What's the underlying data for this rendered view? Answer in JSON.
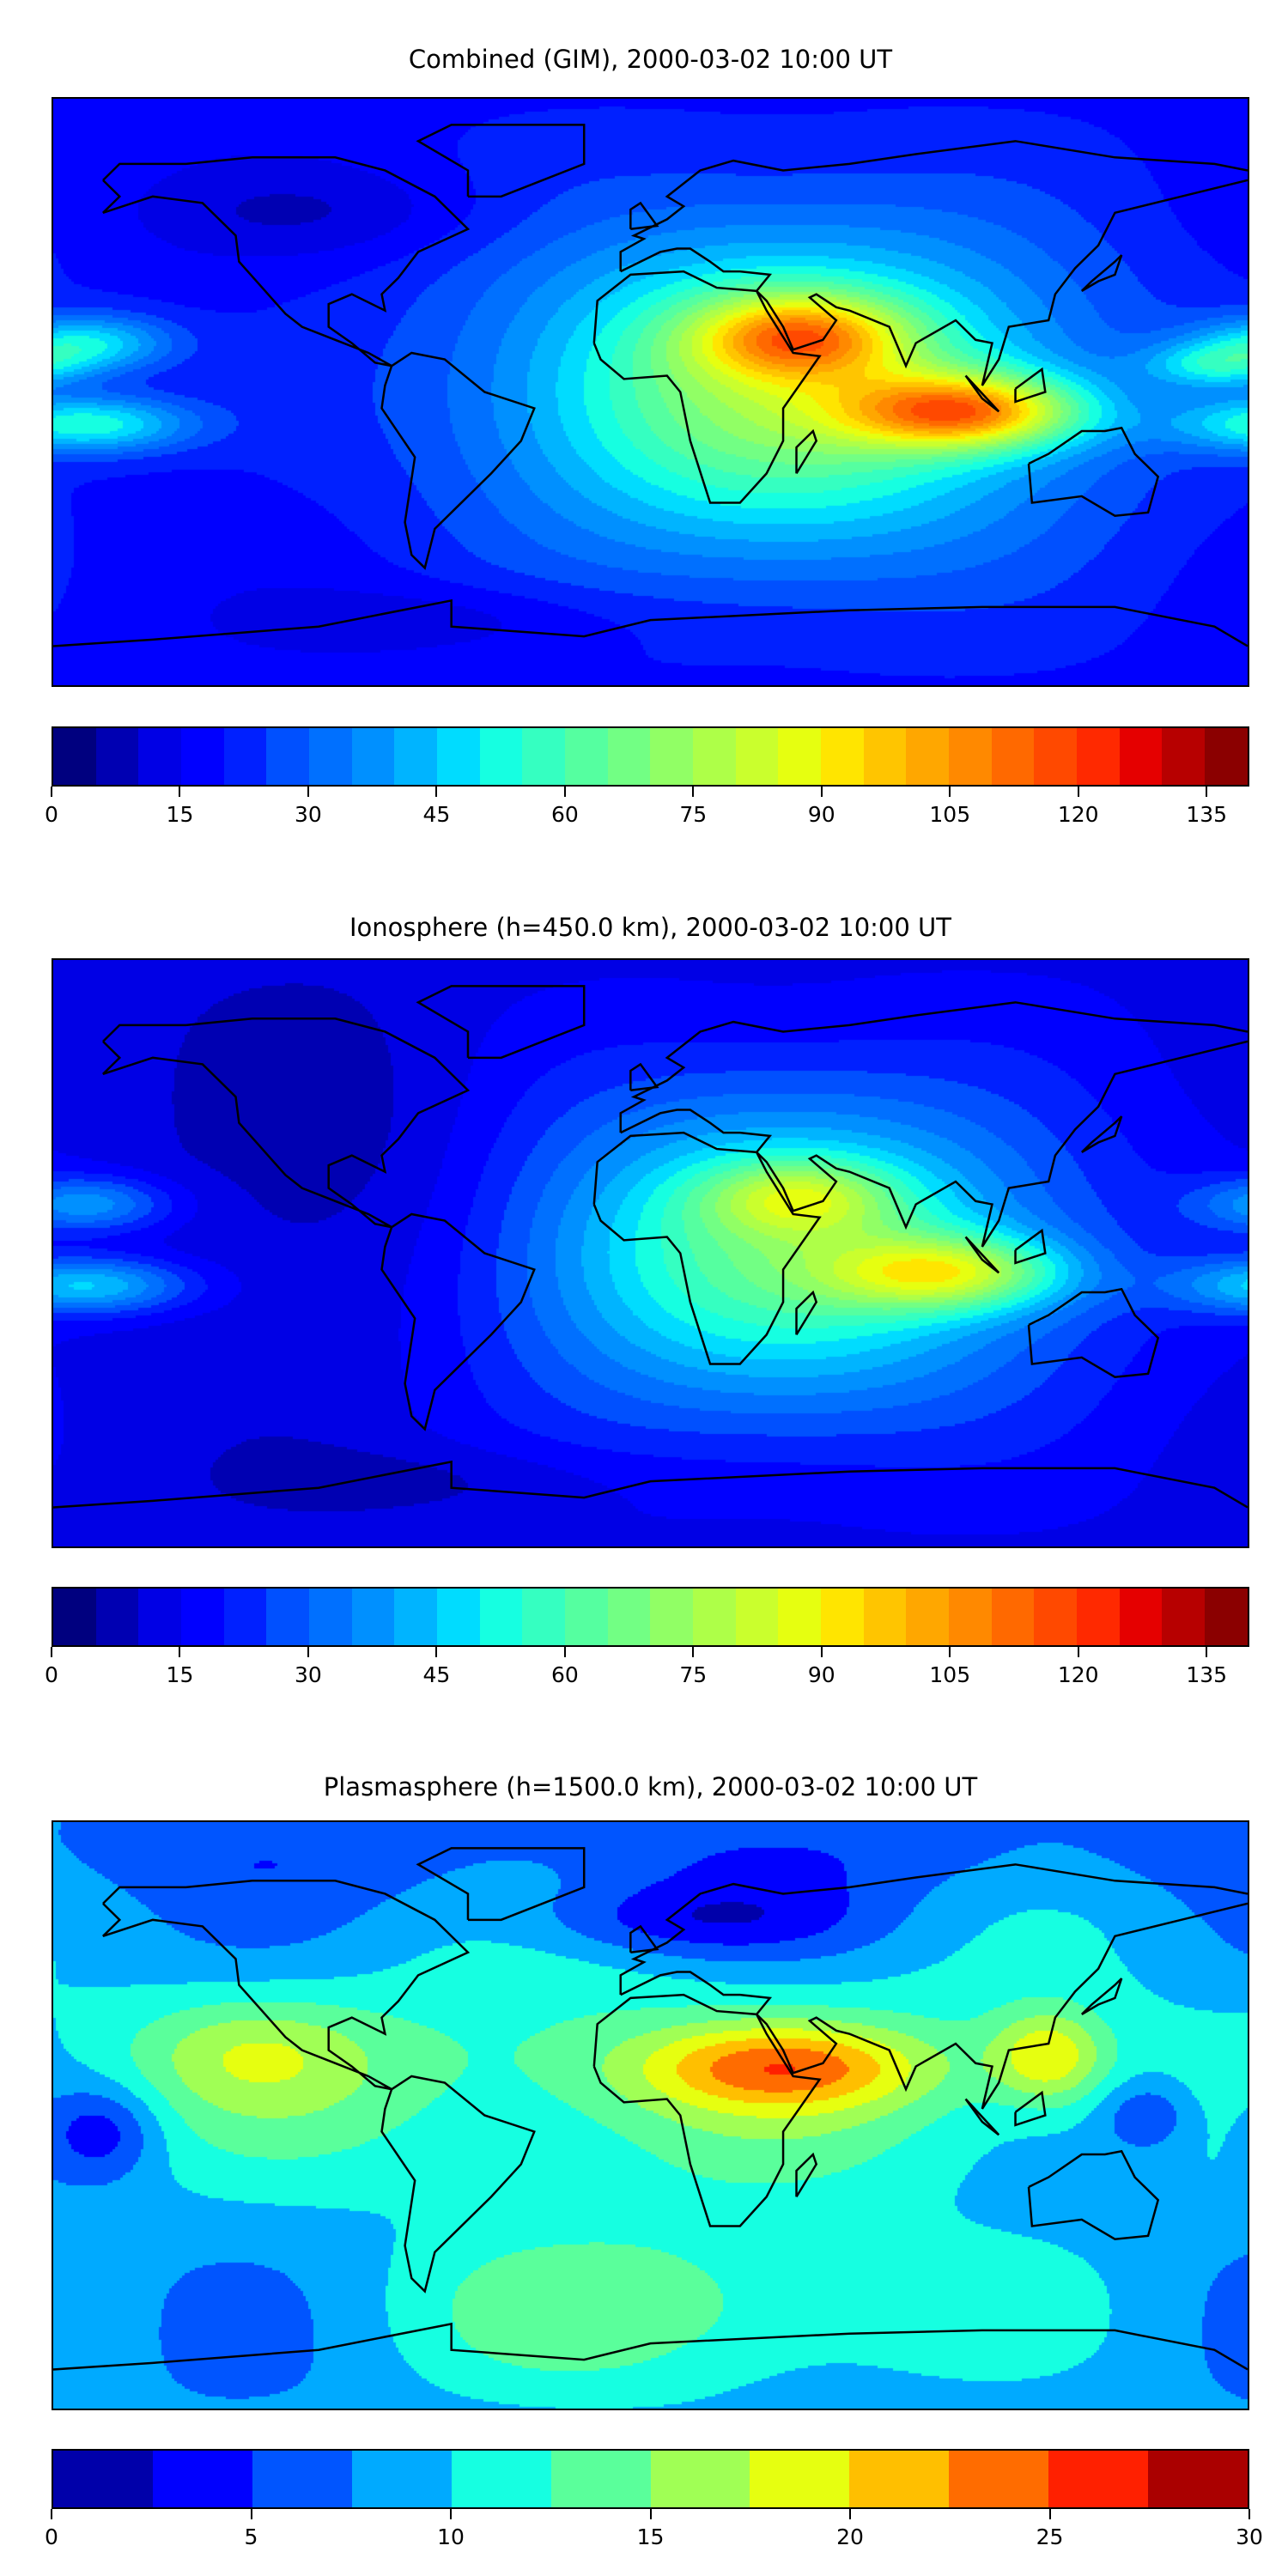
{
  "chart_data": [
    {
      "type": "heatmap",
      "title": "Combined (GIM), 2000-03-02 10:00 UT",
      "xlim": [
        -180,
        180
      ],
      "ylim": [
        -90,
        90
      ],
      "levels": {
        "min": 0,
        "max": 140,
        "step": 5
      },
      "colorbar_ticks": [
        "0",
        "15",
        "30",
        "45",
        "60",
        "75",
        "90",
        "105",
        "120",
        "135"
      ],
      "colorbar_tick_values": [
        0,
        15,
        30,
        45,
        60,
        75,
        90,
        105,
        120,
        135
      ],
      "background": 18,
      "features": [
        {
          "lon": 40,
          "lat": 0,
          "slon": 60,
          "slat": 35,
          "amp": 55
        },
        {
          "lon": 45,
          "lat": 17,
          "slon": 22,
          "slat": 9,
          "amp": 50
        },
        {
          "lon": 95,
          "lat": -6,
          "slon": 25,
          "slat": 8,
          "amp": 65
        },
        {
          "lon": -170,
          "lat": 15,
          "slon": 18,
          "slat": 6,
          "amp": 30
        },
        {
          "lon": -170,
          "lat": -10,
          "slon": 22,
          "slat": 6,
          "amp": 35
        },
        {
          "lon": 170,
          "lat": 8,
          "slon": 15,
          "slat": 5,
          "amp": 25
        },
        {
          "lon": -100,
          "lat": 55,
          "slon": 40,
          "slat": 10,
          "amp": -8
        },
        {
          "lon": -60,
          "lat": -70,
          "slon": 40,
          "slat": 8,
          "amp": -8
        }
      ]
    },
    {
      "type": "heatmap",
      "title": "Ionosphere  (h=450.0 km), 2000-03-02 10:00 UT",
      "xlim": [
        -180,
        180
      ],
      "ylim": [
        -90,
        90
      ],
      "levels": {
        "min": 0,
        "max": 140,
        "step": 5
      },
      "colorbar_ticks": [
        "0",
        "15",
        "30",
        "45",
        "60",
        "75",
        "90",
        "105",
        "120",
        "135"
      ],
      "colorbar_tick_values": [
        0,
        15,
        30,
        45,
        60,
        75,
        90,
        105,
        120,
        135
      ],
      "background": 13,
      "features": [
        {
          "lon": 40,
          "lat": 0,
          "slon": 60,
          "slat": 35,
          "amp": 50
        },
        {
          "lon": 45,
          "lat": 17,
          "slon": 20,
          "slat": 8,
          "amp": 30
        },
        {
          "lon": 90,
          "lat": -6,
          "slon": 25,
          "slat": 8,
          "amp": 45
        },
        {
          "lon": -170,
          "lat": 15,
          "slon": 18,
          "slat": 6,
          "amp": 25
        },
        {
          "lon": -170,
          "lat": -10,
          "slon": 22,
          "slat": 6,
          "amp": 32
        },
        {
          "lon": -90,
          "lat": 20,
          "slon": 40,
          "slat": 40,
          "amp": -8
        },
        {
          "lon": -60,
          "lat": -70,
          "slon": 40,
          "slat": 8,
          "amp": -6
        }
      ]
    },
    {
      "type": "heatmap",
      "title": "Plasmasphere (h=1500.0 km), 2000-03-02 10:00 UT",
      "xlim": [
        -180,
        180
      ],
      "ylim": [
        -90,
        90
      ],
      "levels": {
        "min": 0,
        "max": 30,
        "step": 2.5
      },
      "colorbar_ticks": [
        "0",
        "5",
        "10",
        "15",
        "20",
        "25",
        "30"
      ],
      "colorbar_tick_values": [
        0,
        5,
        10,
        15,
        20,
        25,
        30
      ],
      "background": 8,
      "features": [
        {
          "lon": 0,
          "lat": 10,
          "slon": 140,
          "slat": 25,
          "amp": 6
        },
        {
          "lon": 40,
          "lat": 15,
          "slon": 30,
          "slat": 9,
          "amp": 10
        },
        {
          "lon": 120,
          "lat": 18,
          "slon": 12,
          "slat": 10,
          "amp": 9
        },
        {
          "lon": -120,
          "lat": 20,
          "slon": 25,
          "slat": 12,
          "amp": 5
        },
        {
          "lon": 10,
          "lat": -60,
          "slon": 60,
          "slat": 20,
          "amp": 6
        },
        {
          "lon": 10,
          "lat": 60,
          "slon": 35,
          "slat": 8,
          "amp": -5
        },
        {
          "lon": -165,
          "lat": -5,
          "slon": 12,
          "slat": 10,
          "amp": -6
        },
        {
          "lon": 150,
          "lat": 0,
          "slon": 10,
          "slat": 8,
          "amp": -5
        },
        {
          "lon": 0,
          "lat": 80,
          "slon": 200,
          "slat": 10,
          "amp": -2
        }
      ]
    }
  ],
  "colormaps": {
    "jet28": [
      "#00007f",
      "#0000b2",
      "#0000e5",
      "#0000ff",
      "#0020ff",
      "#0050ff",
      "#0070ff",
      "#0090ff",
      "#00b4ff",
      "#00dcff",
      "#16ffe1",
      "#35ffc1",
      "#55ffa0",
      "#72ff84",
      "#91ff65",
      "#aeff48",
      "#caff2d",
      "#e6ff10",
      "#ffe500",
      "#ffc500",
      "#ffa700",
      "#ff8900",
      "#ff6900",
      "#ff4900",
      "#ff2900",
      "#e50000",
      "#b70000",
      "#8b0000"
    ],
    "jet12": [
      "#0000aa",
      "#0000ff",
      "#0055ff",
      "#00aaff",
      "#16ffe1",
      "#5aff9b",
      "#a0ff55",
      "#e6ff10",
      "#ffbf00",
      "#ff6c00",
      "#ff2000",
      "#aa0000"
    ]
  }
}
